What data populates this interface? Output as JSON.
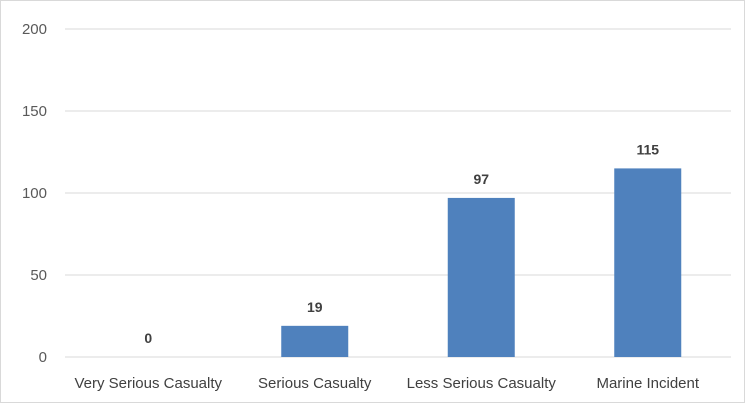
{
  "chart_data": {
    "type": "bar",
    "title": "",
    "xlabel": "",
    "ylabel": "",
    "categories": [
      "Very Serious Casualty",
      "Serious Casualty",
      "Less Serious Casualty",
      "Marine Incident"
    ],
    "values": [
      0,
      19,
      97,
      115
    ],
    "data_labels": [
      "0",
      "19",
      "97",
      "115"
    ],
    "ylim": [
      0,
      200
    ],
    "yticks": [
      0,
      50,
      100,
      150,
      200
    ],
    "ytick_labels": [
      "0",
      "50",
      "100",
      "150",
      "200"
    ],
    "grid": true,
    "legend": "none",
    "bar_color": "#4f81bd"
  }
}
